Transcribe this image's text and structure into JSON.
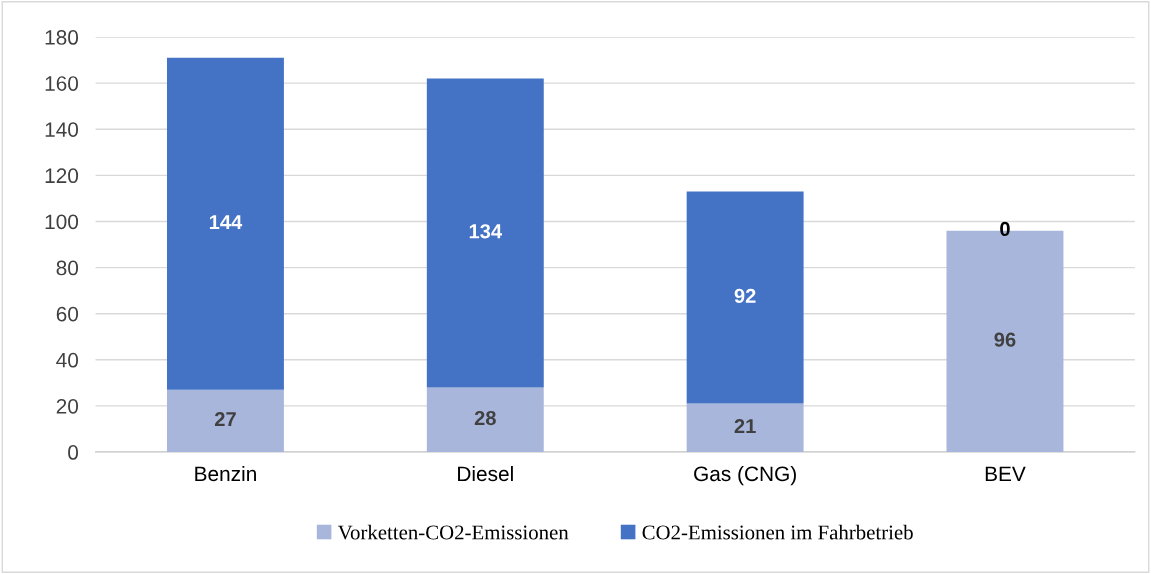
{
  "chart_data": {
    "type": "bar",
    "stacked": true,
    "categories": [
      "Benzin",
      "Diesel",
      "Gas (CNG)",
      "BEV"
    ],
    "series": [
      {
        "name": "Vorketten-CO2-Emissionen",
        "color": "#a9b6dc",
        "values": [
          27,
          28,
          21,
          96
        ]
      },
      {
        "name": "CO2-Emissionen im Fahrbetrieb",
        "color": "#4472c4",
        "values": [
          144,
          134,
          92,
          0
        ]
      }
    ],
    "ylim": [
      0,
      180
    ],
    "yticks": [
      0,
      20,
      40,
      60,
      80,
      100,
      120,
      140,
      160,
      180
    ],
    "grid": "y",
    "legend": "bottom",
    "data_labels": true
  }
}
